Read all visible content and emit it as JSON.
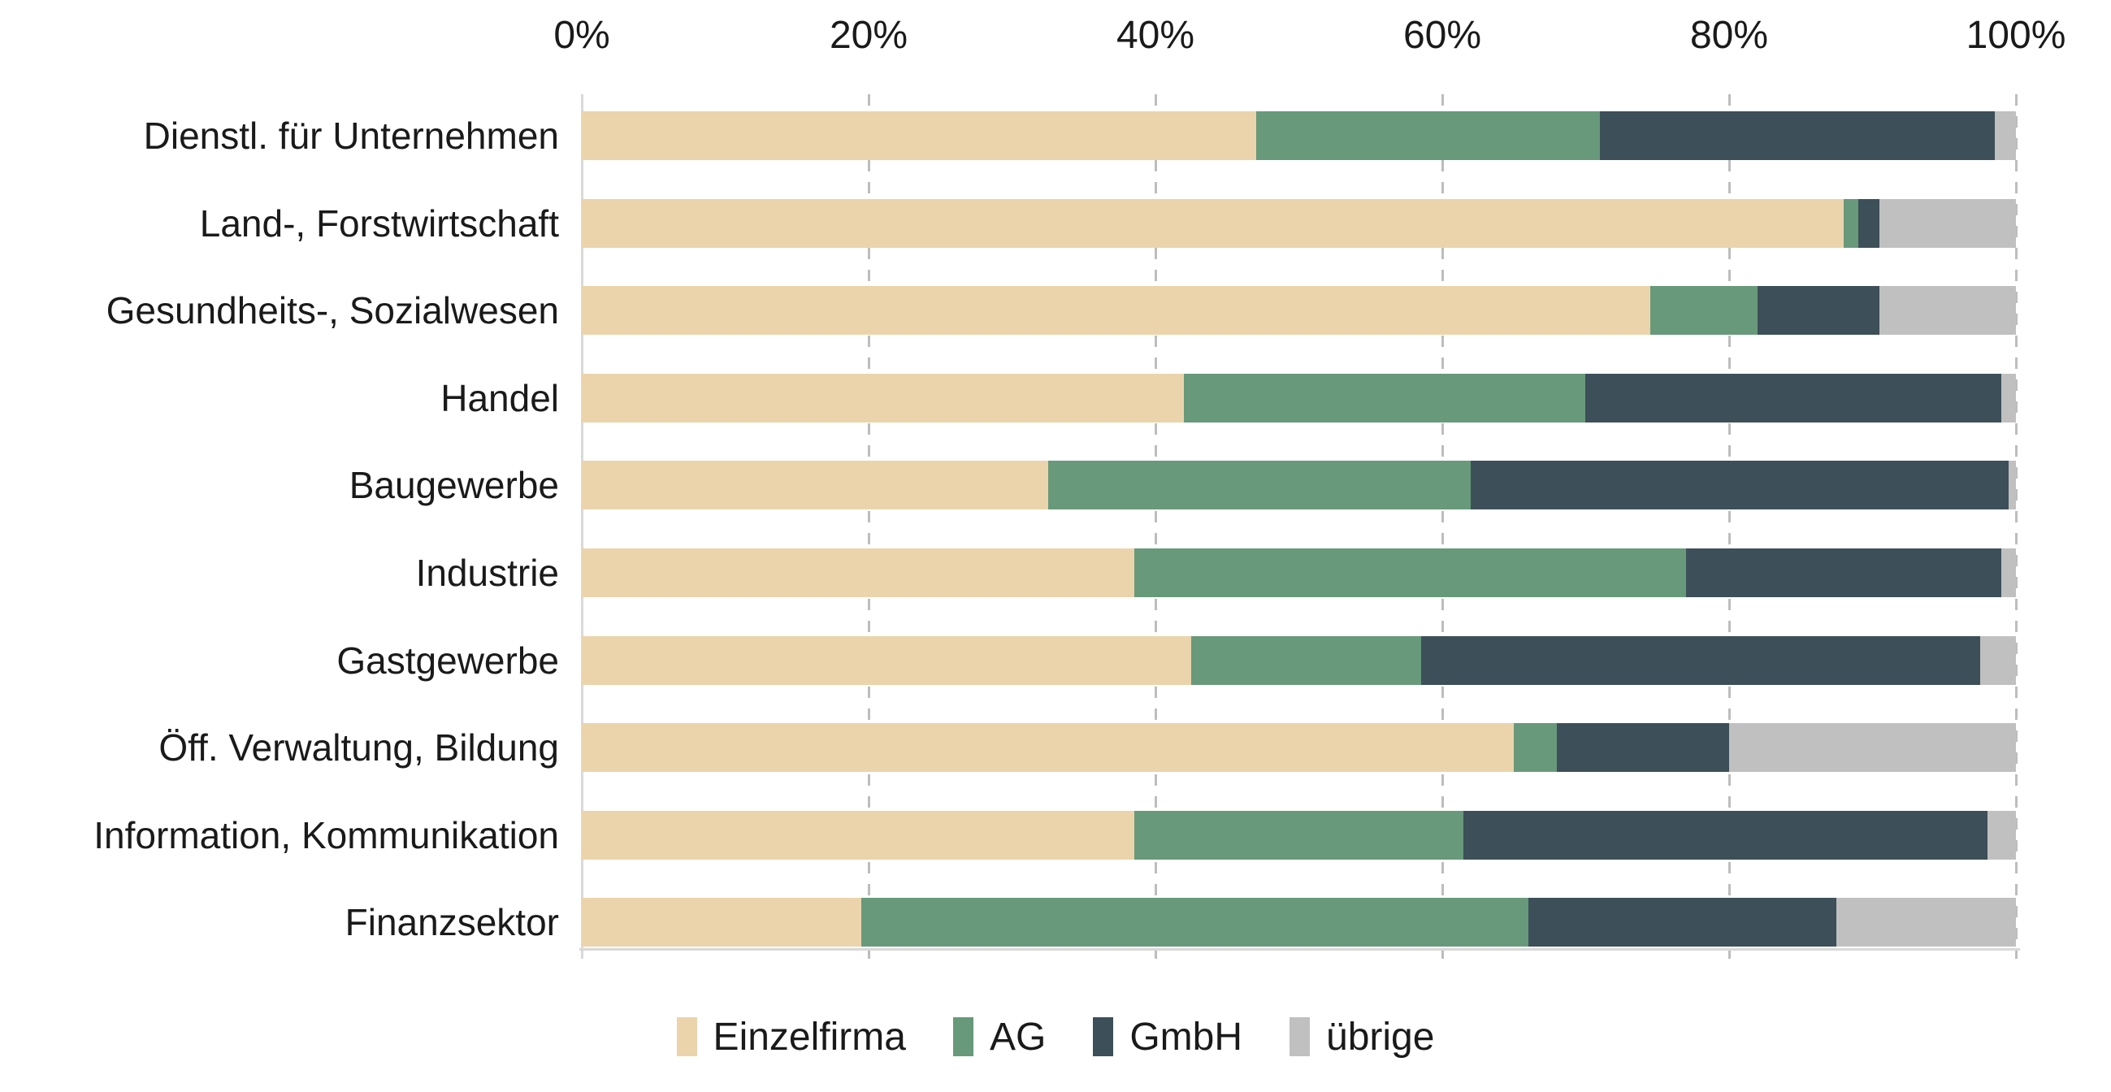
{
  "chart_data": {
    "type": "bar",
    "variant": "stacked-horizontal",
    "title": "",
    "xlabel": "",
    "ylabel": "",
    "xlim": [
      0,
      100
    ],
    "x_tick_labels": [
      "0%",
      "20%",
      "40%",
      "60%",
      "80%",
      "100%"
    ],
    "grid": "dashed-vertical",
    "legend_position": "bottom-center",
    "categories": [
      "Dienstl. für Unternehmen",
      "Land-, Forstwirtschaft",
      "Gesundheits-, Sozialwesen",
      "Handel",
      "Baugewerbe",
      "Industrie",
      "Gastgewerbe",
      "Öff. Verwaltung, Bildung",
      "Information, Kommunikation",
      "Finanzsektor"
    ],
    "series": [
      {
        "name": "Einzelfirma",
        "key": "einzelfirma",
        "color": "#EBD4AB",
        "values": [
          47,
          88,
          74.5,
          42,
          32.5,
          38.5,
          42.5,
          65,
          38.5,
          19.5
        ]
      },
      {
        "name": "AG",
        "key": "ag",
        "color": "#67997A",
        "values": [
          24,
          1,
          7.5,
          28,
          29.5,
          38.5,
          16,
          3,
          23,
          46.5
        ]
      },
      {
        "name": "GmbH",
        "key": "gmbh",
        "color": "#3D4F59",
        "values": [
          27.5,
          1.5,
          8.5,
          29,
          37.5,
          22,
          39,
          12,
          36.5,
          21.5
        ]
      },
      {
        "name": "übrige",
        "key": "uebrige",
        "color": "#C0C0C0",
        "values": [
          1.5,
          9.5,
          9.5,
          1,
          0.5,
          1,
          2.5,
          20,
          2,
          12.5
        ]
      }
    ],
    "style": {
      "gridline_color": "#BDBDBD",
      "axis_line_color": "#D9D9D9",
      "text_color": "#1A1A1A"
    }
  }
}
